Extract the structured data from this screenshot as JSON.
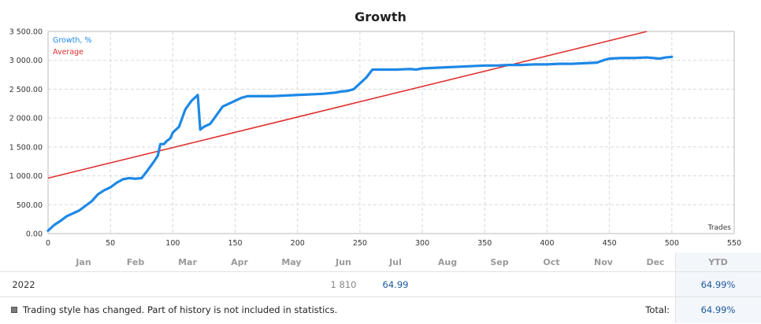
{
  "chart_data": {
    "type": "line",
    "title": "Growth",
    "xlabel": "Trades",
    "ylabel": "",
    "xlim": [
      0,
      550
    ],
    "ylim": [
      0,
      3500
    ],
    "x_ticks": [
      0,
      50,
      100,
      150,
      200,
      250,
      300,
      350,
      400,
      450,
      500,
      550
    ],
    "y_ticks": [
      "0.00",
      "500.00",
      "1 000.00",
      "1 500.00",
      "2 000.00",
      "2 500.00",
      "3 000.00",
      "3 500.00"
    ],
    "grid": true,
    "legend": "top-left",
    "series": [
      {
        "name": "Growth, %",
        "color": "#1e88e5",
        "x": [
          0,
          5,
          10,
          15,
          20,
          25,
          30,
          35,
          40,
          45,
          50,
          55,
          60,
          65,
          70,
          75,
          80,
          85,
          88,
          90,
          93,
          95,
          98,
          100,
          105,
          110,
          115,
          120,
          122,
          125,
          130,
          135,
          140,
          145,
          150,
          155,
          160,
          170,
          180,
          190,
          200,
          210,
          220,
          230,
          235,
          240,
          245,
          250,
          255,
          260,
          270,
          280,
          290,
          295,
          300,
          310,
          320,
          330,
          340,
          350,
          360,
          370,
          380,
          390,
          400,
          410,
          420,
          430,
          440,
          445,
          450,
          460,
          470,
          480,
          485,
          490,
          495,
          500
        ],
        "values": [
          50,
          150,
          220,
          300,
          350,
          400,
          480,
          560,
          680,
          750,
          800,
          880,
          940,
          960,
          950,
          960,
          1100,
          1250,
          1350,
          1550,
          1550,
          1600,
          1650,
          1750,
          1850,
          2150,
          2300,
          2400,
          1800,
          1850,
          1900,
          2050,
          2200,
          2250,
          2300,
          2350,
          2380,
          2380,
          2380,
          2390,
          2400,
          2410,
          2420,
          2440,
          2460,
          2470,
          2500,
          2600,
          2700,
          2840,
          2840,
          2840,
          2850,
          2840,
          2860,
          2870,
          2880,
          2890,
          2900,
          2910,
          2910,
          2920,
          2920,
          2930,
          2930,
          2940,
          2940,
          2950,
          2960,
          3000,
          3030,
          3040,
          3040,
          3050,
          3040,
          3030,
          3050,
          3060
        ]
      },
      {
        "name": "Average",
        "color": "#e03030",
        "x": [
          0,
          480
        ],
        "values": [
          960,
          3500
        ]
      }
    ]
  },
  "monthly_table": {
    "months": [
      "Jan",
      "Feb",
      "Mar",
      "Apr",
      "May",
      "Jun",
      "Jul",
      "Aug",
      "Sep",
      "Oct",
      "Nov",
      "Dec"
    ],
    "ytd_label": "YTD",
    "year": "2022",
    "values": [
      "",
      "",
      "",
      "",
      "",
      "1 810",
      "64.99",
      "",
      "",
      "",
      "",
      ""
    ],
    "ytd_value": "64.99%"
  },
  "footer": {
    "note": "Trading style has changed. Part of history is not included in statistics.",
    "total_label": "Total:",
    "total_value": "64.99%"
  }
}
